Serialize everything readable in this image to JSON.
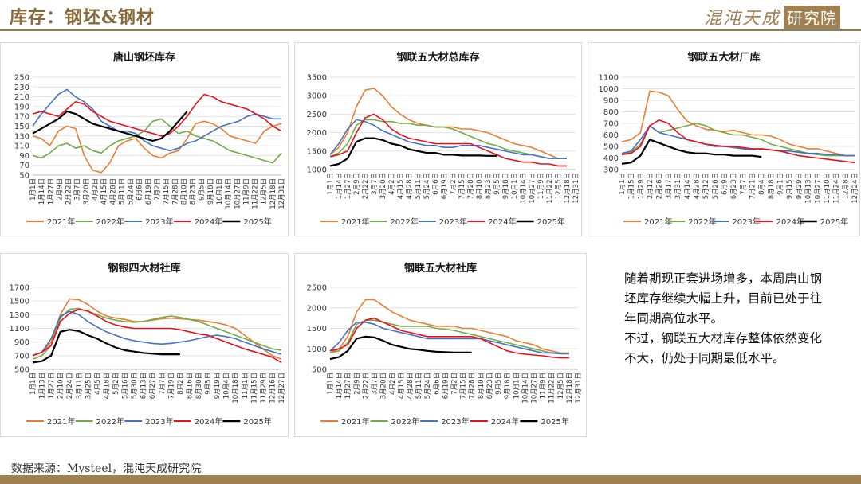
{
  "header": {
    "title": "库存：钢坯&钢材"
  },
  "logo": {
    "main": "混沌天成",
    "box": "研究院"
  },
  "footer": {
    "source": "数据来源：Mysteel，混沌天成研究院"
  },
  "note": {
    "paragraphs": [
      "随着期现正套进场增多，本周唐山钢坯库存继续大幅上升，目前已处于往年同期高位水平。",
      "不过，钢联五大材库存整体依然变化不大，仍处于同期最低水平。"
    ]
  },
  "colors": {
    "brand": "#a08050",
    "2021年": "#ED7D31",
    "2022年": "#70AD47",
    "2023年": "#4472C4",
    "2024年": "#E8101C",
    "2025年": "#000000"
  },
  "chart_data": [
    {
      "type": "line",
      "title": "唐山钢坯库存",
      "ylim": [
        50,
        250
      ],
      "yticks": [
        50,
        70,
        90,
        110,
        130,
        150,
        170,
        190,
        210,
        230,
        250
      ],
      "x_tick_labels": [
        "1月1日",
        "1月14日",
        "1月27日",
        "2月9日",
        "2月22日",
        "3月7日",
        "3月20日",
        "4月2日",
        "4月15日",
        "4月28日",
        "5月11日",
        "5月24日",
        "6月6日",
        "6月19日",
        "7月2日",
        "7月15日",
        "7月28日",
        "8月10日",
        "8月23日",
        "9月5日",
        "9月18日",
        "10月1日",
        "10月14日",
        "10月27日",
        "11月9日",
        "11月22日",
        "12月5日",
        "12月18日",
        "12月31日"
      ],
      "legend": [
        "2021年",
        "2022年",
        "2023年",
        "2024年",
        "2025年"
      ],
      "series": [
        {
          "name": "2021年",
          "values": [
            130,
            125,
            110,
            140,
            150,
            145,
            90,
            60,
            55,
            75,
            110,
            120,
            125,
            105,
            90,
            85,
            95,
            100,
            125,
            155,
            160,
            155,
            145,
            130,
            125,
            120,
            115,
            140,
            150,
            155
          ]
        },
        {
          "name": "2022年",
          "values": [
            90,
            85,
            95,
            110,
            115,
            105,
            110,
            100,
            95,
            110,
            120,
            125,
            130,
            140,
            160,
            165,
            150,
            135,
            140,
            130,
            125,
            120,
            110,
            100,
            95,
            90,
            85,
            80,
            75,
            95
          ]
        },
        {
          "name": "2023年",
          "values": [
            150,
            175,
            195,
            215,
            225,
            210,
            200,
            185,
            160,
            150,
            140,
            140,
            135,
            120,
            110,
            105,
            100,
            105,
            115,
            120,
            130,
            140,
            150,
            155,
            160,
            170,
            175,
            170,
            165,
            165
          ]
        },
        {
          "name": "2024年",
          "values": [
            175,
            180,
            175,
            170,
            185,
            200,
            195,
            180,
            170,
            160,
            155,
            150,
            145,
            140,
            135,
            130,
            135,
            150,
            170,
            195,
            215,
            210,
            200,
            195,
            190,
            185,
            175,
            165,
            150,
            140
          ]
        },
        {
          "name": "2025年",
          "values": [
            135,
            145,
            155,
            165,
            180,
            175,
            165,
            155,
            150,
            145,
            140,
            135,
            130,
            125,
            120,
            125,
            140,
            160,
            180
          ]
        }
      ]
    },
    {
      "type": "line",
      "title": "钢联五大材总库存",
      "ylim": [
        1000,
        3500
      ],
      "yticks": [
        1000,
        1500,
        2000,
        2500,
        3000,
        3500
      ],
      "x_tick_labels": [
        "1月1日",
        "1月14日",
        "1月27日",
        "2月9日",
        "2月22日",
        "3月7日",
        "3月20日",
        "4月2日",
        "4月15日",
        "4月28日",
        "5月11日",
        "5月24日",
        "6月6日",
        "6月19日",
        "7月2日",
        "7月15日",
        "7月28日",
        "8月10日",
        "8月23日",
        "9月5日",
        "9月18日",
        "10月1日",
        "10月14日",
        "10月27日",
        "11月9日",
        "11月22日",
        "12月5日",
        "12月18日",
        "12月31日"
      ],
      "legend": [
        "2021年",
        "2022年",
        "2023年",
        "2024年",
        "2025年"
      ],
      "series": [
        {
          "name": "2021年",
          "values": [
            1400,
            1600,
            2000,
            2700,
            3150,
            3200,
            3000,
            2700,
            2500,
            2350,
            2250,
            2200,
            2150,
            2150,
            2150,
            2100,
            2100,
            2050,
            2000,
            1900,
            1800,
            1700,
            1650,
            1600,
            1500,
            1400,
            1300,
            1300
          ]
        },
        {
          "name": "2022年",
          "values": [
            1350,
            1450,
            1700,
            2200,
            2350,
            2350,
            2300,
            2300,
            2250,
            2250,
            2200,
            2200,
            2150,
            2150,
            2100,
            2000,
            1900,
            1800,
            1700,
            1650,
            1550,
            1500,
            1450,
            1400,
            1350,
            1300,
            1300,
            1300
          ]
        },
        {
          "name": "2023年",
          "values": [
            1400,
            1700,
            2100,
            2350,
            2300,
            2200,
            2050,
            1950,
            1850,
            1750,
            1700,
            1650,
            1650,
            1600,
            1600,
            1650,
            1650,
            1650,
            1600,
            1550,
            1500,
            1450,
            1400,
            1400,
            1350,
            1300,
            1300,
            1300
          ]
        },
        {
          "name": "2024年",
          "values": [
            1350,
            1400,
            1500,
            2000,
            2400,
            2500,
            2350,
            2100,
            1950,
            1850,
            1800,
            1750,
            1700,
            1700,
            1700,
            1700,
            1700,
            1600,
            1500,
            1400,
            1300,
            1250,
            1200,
            1200,
            1150,
            1150,
            1100,
            1100
          ]
        },
        {
          "name": "2025年",
          "values": [
            1100,
            1150,
            1300,
            1750,
            1850,
            1850,
            1800,
            1700,
            1650,
            1550,
            1500,
            1450,
            1450,
            1400,
            1400,
            1380,
            1380,
            1380,
            1370,
            1370
          ]
        }
      ]
    },
    {
      "type": "line",
      "title": "钢联五大材厂库",
      "ylim": [
        300,
        1100
      ],
      "yticks": [
        300,
        400,
        500,
        600,
        700,
        800,
        900,
        1000,
        1100
      ],
      "x_tick_labels": [
        "1月1日",
        "1月15日",
        "1月29日",
        "2月12日",
        "2月26日",
        "3月17日",
        "3月31日",
        "4月14日",
        "4月28日",
        "5月12日",
        "5月26日",
        "6月9日",
        "6月23日",
        "7月7日",
        "7月21日",
        "8月4日",
        "8月18日",
        "9月1日",
        "9月15日",
        "9月29日",
        "10月13日",
        "10月27日",
        "11月10日",
        "11月24日",
        "12月8日",
        "12月24日"
      ],
      "legend": [
        "2021年",
        "2022年",
        "2023年",
        "2024年",
        "2025年"
      ],
      "series": [
        {
          "name": "2021年",
          "values": [
            540,
            560,
            620,
            980,
            970,
            940,
            820,
            720,
            680,
            650,
            640,
            630,
            640,
            620,
            600,
            600,
            590,
            560,
            520,
            500,
            480,
            480,
            460,
            440,
            420,
            420
          ]
        },
        {
          "name": "2022年",
          "values": [
            440,
            450,
            520,
            680,
            620,
            640,
            660,
            680,
            700,
            680,
            640,
            620,
            600,
            600,
            580,
            560,
            520,
            500,
            480,
            460,
            440,
            430,
            420,
            420,
            420,
            420
          ]
        },
        {
          "name": "2023年",
          "values": [
            440,
            460,
            560,
            680,
            620,
            600,
            580,
            560,
            540,
            520,
            500,
            500,
            490,
            480,
            470,
            480,
            470,
            460,
            460,
            450,
            440,
            440,
            430,
            430,
            420,
            420
          ]
        },
        {
          "name": "2024年",
          "values": [
            430,
            440,
            500,
            680,
            730,
            700,
            620,
            560,
            540,
            520,
            510,
            500,
            500,
            490,
            480,
            480,
            470,
            460,
            440,
            420,
            410,
            400,
            390,
            380,
            370,
            360
          ]
        },
        {
          "name": "2025年",
          "values": [
            350,
            360,
            420,
            560,
            530,
            500,
            470,
            450,
            440,
            440,
            430,
            430,
            420,
            420,
            420,
            410
          ]
        }
      ]
    },
    {
      "type": "line",
      "title": "钢银四大材社库",
      "ylim": [
        500,
        1700
      ],
      "yticks": [
        500,
        700,
        900,
        1100,
        1300,
        1500,
        1700
      ],
      "x_tick_labels": [
        "1月1日",
        "1月13日",
        "1月27日",
        "2月10日",
        "2月24日",
        "3月11日",
        "3月25日",
        "4月5日",
        "4月18日",
        "5月2日",
        "5月16日",
        "5月30日",
        "6月13日",
        "6月27日",
        "7月7日",
        "7月19日",
        "8月2日",
        "8月16日",
        "8月30日",
        "9月5日",
        "9月19日",
        "10月4日",
        "10月18日",
        "11月1日",
        "11月15日",
        "11月29日",
        "12月16日",
        "12月27日"
      ],
      "legend": [
        "2021年",
        "2022年",
        "2023年",
        "2024年",
        "2025年"
      ],
      "series": [
        {
          "name": "2021年",
          "values": [
            700,
            750,
            900,
            1300,
            1530,
            1520,
            1450,
            1350,
            1280,
            1250,
            1230,
            1200,
            1200,
            1220,
            1240,
            1250,
            1240,
            1230,
            1220,
            1200,
            1180,
            1150,
            1100,
            1000,
            900,
            800,
            700,
            650
          ]
        },
        {
          "name": "2022年",
          "values": [
            650,
            700,
            850,
            1250,
            1380,
            1390,
            1350,
            1300,
            1250,
            1220,
            1200,
            1190,
            1200,
            1230,
            1260,
            1280,
            1260,
            1230,
            1200,
            1150,
            1100,
            1050,
            1000,
            950,
            900,
            850,
            800,
            780
          ]
        },
        {
          "name": "2023年",
          "values": [
            700,
            750,
            950,
            1280,
            1350,
            1300,
            1200,
            1120,
            1050,
            1000,
            950,
            920,
            900,
            880,
            870,
            880,
            900,
            920,
            950,
            980,
            1000,
            980,
            950,
            900,
            850,
            800,
            760,
            720
          ]
        },
        {
          "name": "2024年",
          "values": [
            700,
            750,
            850,
            1200,
            1320,
            1380,
            1350,
            1280,
            1200,
            1150,
            1120,
            1100,
            1100,
            1100,
            1100,
            1100,
            1080,
            1050,
            1020,
            1000,
            950,
            900,
            850,
            800,
            760,
            720,
            680,
            600
          ]
        },
        {
          "name": "2025年",
          "values": [
            600,
            620,
            700,
            1050,
            1080,
            1060,
            1000,
            950,
            880,
            820,
            780,
            760,
            740,
            730,
            720,
            720,
            720
          ]
        }
      ]
    },
    {
      "type": "line",
      "title": "钢联五大材社库",
      "ylim": [
        500,
        2500
      ],
      "yticks": [
        500,
        1000,
        1500,
        2000,
        2500
      ],
      "x_tick_labels": [
        "1月1日",
        "1月14日",
        "1月27日",
        "2月9日",
        "2月22日",
        "3月7日",
        "3月20日",
        "4月2日",
        "4月15日",
        "4月28日",
        "5月11日",
        "5月24日",
        "6月6日",
        "6月19日",
        "7月2日",
        "7月15日",
        "7月28日",
        "8月10日",
        "8月23日",
        "9月5日",
        "9月18日",
        "10月1日",
        "10月14日",
        "10月27日",
        "11月9日",
        "11月22日",
        "12月5日",
        "12月18日",
        "12月31日"
      ],
      "legend": [
        "2021年",
        "2022年",
        "2023年",
        "2024年",
        "2025年"
      ],
      "series": [
        {
          "name": "2021年",
          "values": [
            900,
            1000,
            1300,
            1900,
            2200,
            2200,
            2050,
            1900,
            1800,
            1700,
            1650,
            1600,
            1550,
            1550,
            1550,
            1500,
            1500,
            1450,
            1400,
            1350,
            1300,
            1200,
            1150,
            1100,
            1000,
            950,
            900,
            900
          ]
        },
        {
          "name": "2022年",
          "values": [
            900,
            950,
            1150,
            1600,
            1700,
            1700,
            1650,
            1600,
            1550,
            1550,
            1550,
            1550,
            1500,
            1480,
            1450,
            1400,
            1350,
            1300,
            1250,
            1200,
            1150,
            1100,
            1050,
            1000,
            950,
            900,
            900,
            880
          ]
        },
        {
          "name": "2023年",
          "values": [
            950,
            1150,
            1450,
            1650,
            1650,
            1600,
            1500,
            1450,
            1400,
            1350,
            1300,
            1250,
            1250,
            1250,
            1250,
            1250,
            1250,
            1250,
            1200,
            1150,
            1100,
            1050,
            1000,
            950,
            900,
            900,
            880,
            880
          ]
        },
        {
          "name": "2024年",
          "values": [
            950,
            1000,
            1100,
            1500,
            1700,
            1750,
            1650,
            1550,
            1450,
            1400,
            1350,
            1300,
            1300,
            1300,
            1300,
            1300,
            1300,
            1250,
            1150,
            1050,
            950,
            900,
            870,
            850,
            830,
            800,
            780,
            780
          ]
        },
        {
          "name": "2025年",
          "values": [
            750,
            800,
            950,
            1250,
            1300,
            1280,
            1200,
            1100,
            1050,
            1000,
            980,
            950,
            930,
            920,
            910,
            910,
            910
          ]
        }
      ]
    }
  ]
}
